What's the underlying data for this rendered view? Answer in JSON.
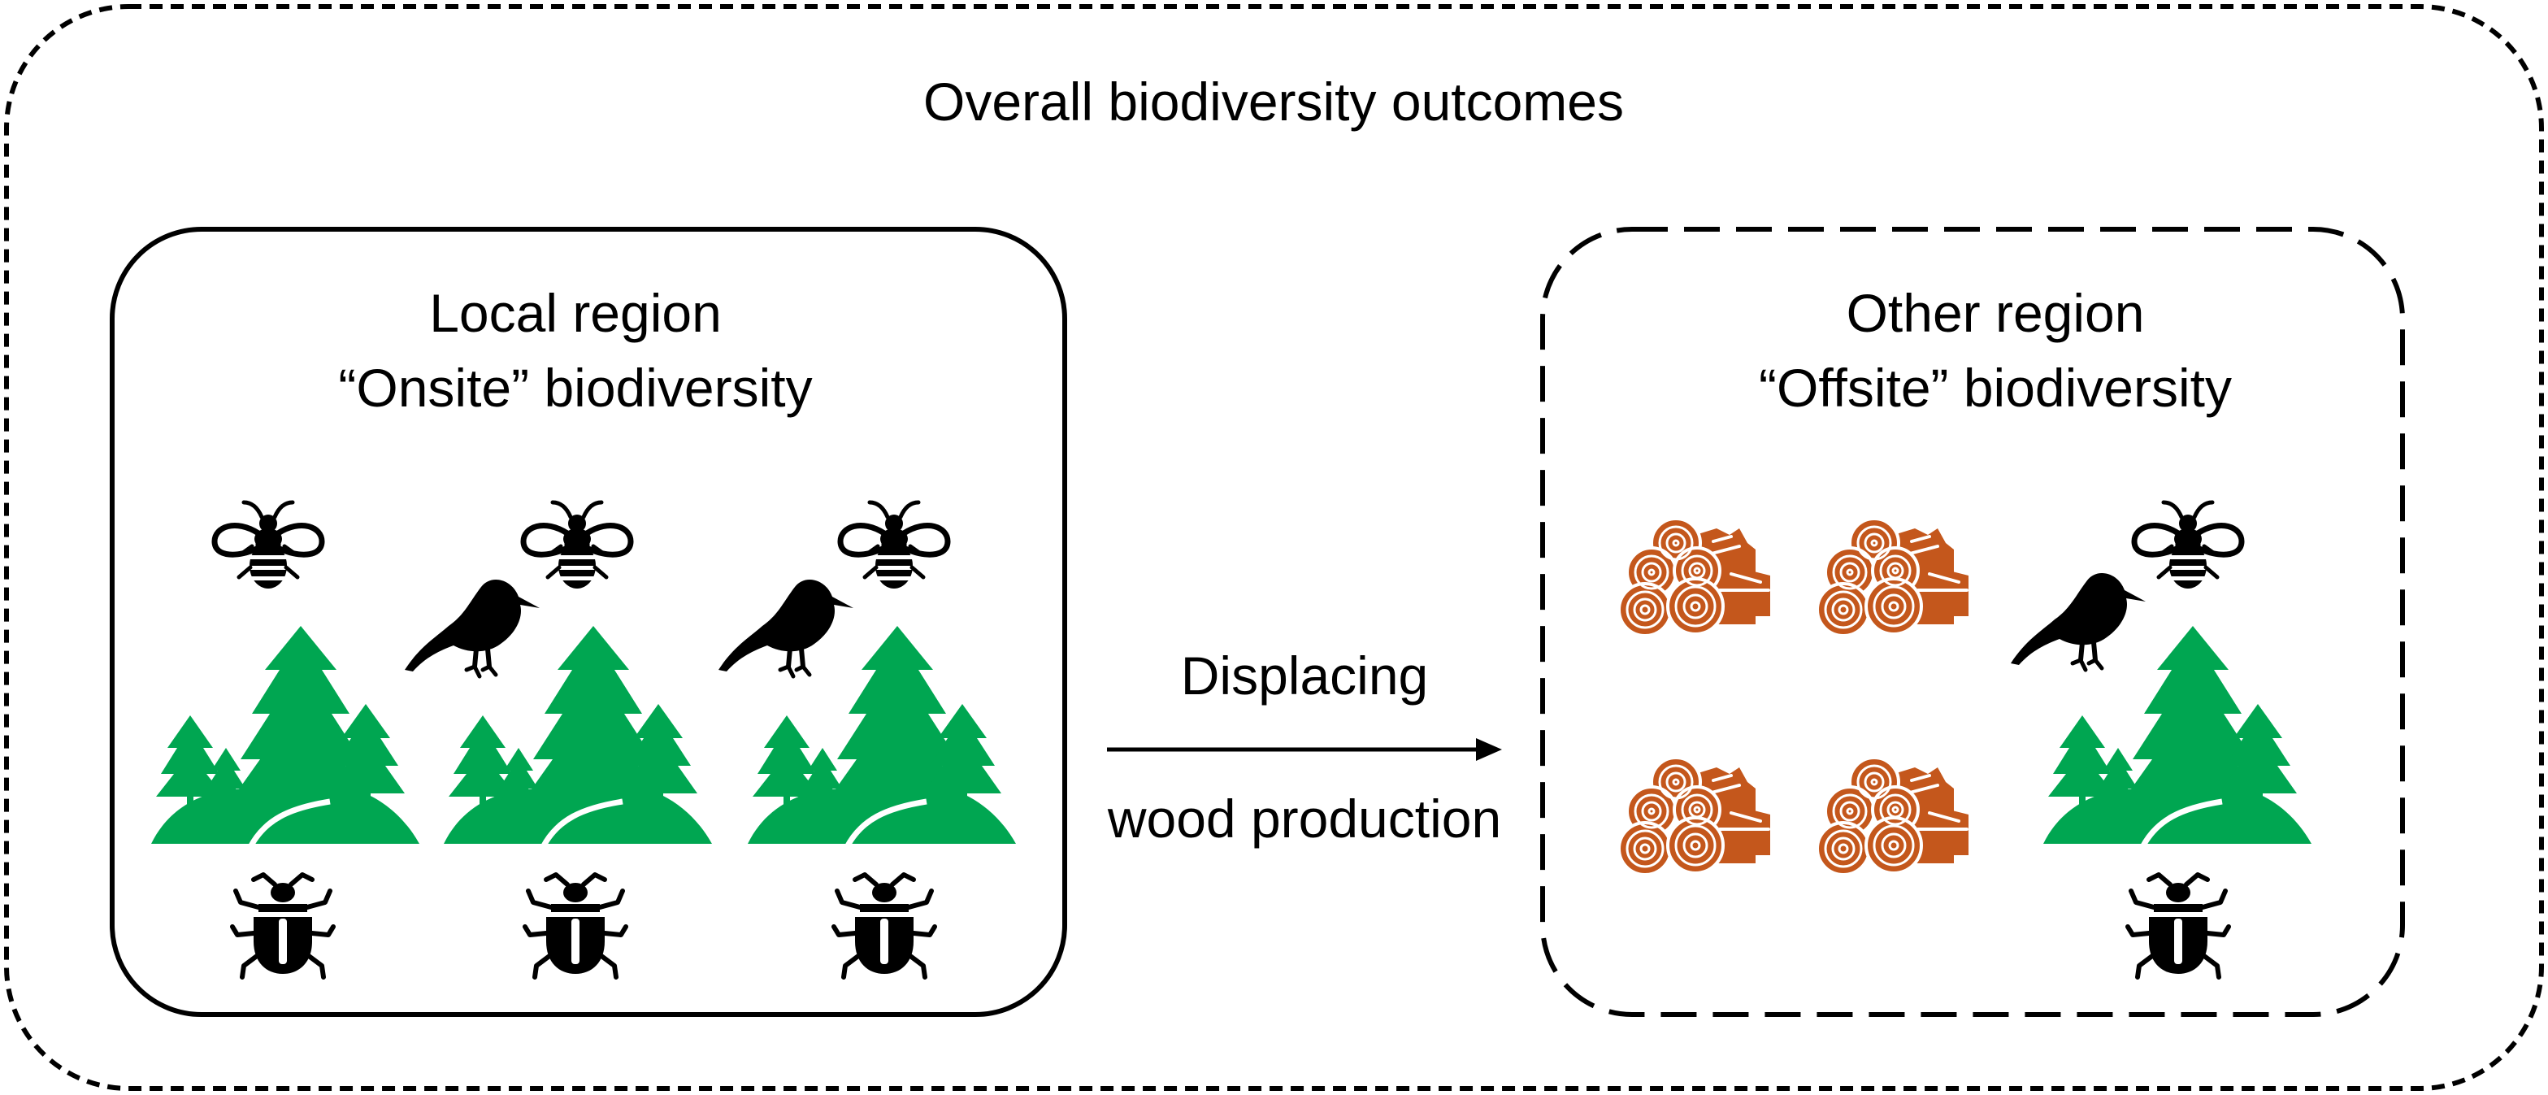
{
  "title": "Overall biodiversity outcomes",
  "local_region": {
    "title": "Local region",
    "subtitle": "“Onsite” biodiversity"
  },
  "other_region": {
    "title": "Other region",
    "subtitle": "“Offsite” biodiversity"
  },
  "arrow": {
    "label_top": "Displacing",
    "label_bottom": "wood production"
  },
  "icons": {
    "local": [
      "bee-icon",
      "bird-icon",
      "forest-icon",
      "beetle-icon"
    ],
    "other": [
      "log-pile-icon",
      "bee-icon",
      "bird-icon",
      "forest-icon",
      "beetle-icon"
    ]
  },
  "colors": {
    "forest": "#00a651",
    "logs": "#c4571c",
    "animals": "#000000",
    "border": "#000000"
  }
}
